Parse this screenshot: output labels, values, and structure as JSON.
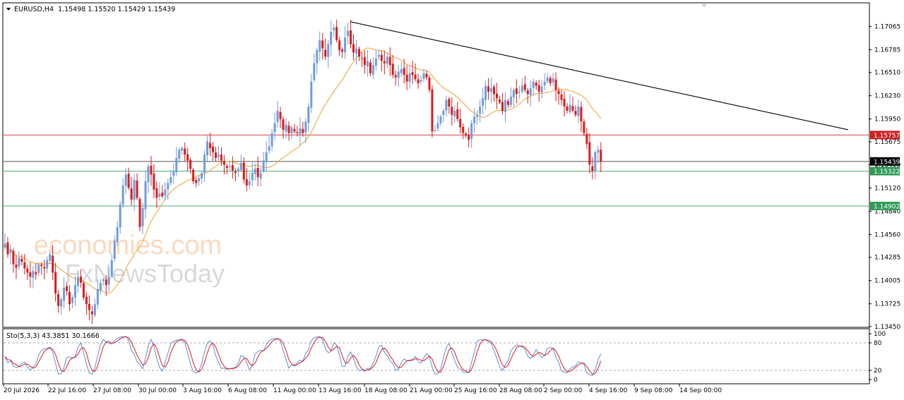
{
  "chart_data": {
    "type": "candlestick",
    "symbol": "EURUSD,H4",
    "ohlc_header": "1.15498 1.15520 1.15429 1.15439",
    "y_ticks": [
      "1.17065",
      "1.16785",
      "1.16510",
      "1.16230",
      "1.15950",
      "1.15675",
      "1.15400",
      "1.15120",
      "1.14840",
      "1.14560",
      "1.14285",
      "1.14005",
      "1.13725",
      "1.13450"
    ],
    "y_range": [
      1.1345,
      1.1734
    ],
    "x_ticks": [
      "20 Jul 2026",
      "22 Jul 16:00",
      "27 Jul 08:00",
      "30 Jul 00:00",
      "3 Aug 16:00",
      "6 Aug 08:00",
      "11 Aug 00:00",
      "13 Aug 16:00",
      "18 Aug 08:00",
      "21 Aug 00:00",
      "25 Aug 16:00",
      "28 Aug 08:00",
      "2 Sep 00:00",
      "4 Sep 16:00",
      "9 Sep 08:00",
      "14 Sep 00:00"
    ],
    "levels": [
      {
        "label": "1.15757",
        "value": 1.15757,
        "color": "#cc2222"
      },
      {
        "label": "1.15439",
        "value": 1.15439,
        "color": "#333333"
      },
      {
        "label": "1.15322",
        "value": 1.15322,
        "color": "#2e9b57"
      },
      {
        "label": "1.14902",
        "value": 1.14902,
        "color": "#2e9b57"
      }
    ],
    "trendline": {
      "from": {
        "bar": 123,
        "price": 1.1712
      },
      "to": {
        "bar": 251,
        "price": 1.1582
      }
    },
    "moving_average_color": "#f0a030",
    "up_color": "#6f9bdc",
    "down_color": "#dd1a1a",
    "closes": [
      1.1445,
      1.1432,
      1.1438,
      1.142,
      1.1416,
      1.1428,
      1.1423,
      1.1415,
      1.141,
      1.1405,
      1.1412,
      1.1408,
      1.142,
      1.1418,
      1.1415,
      1.1425,
      1.1432,
      1.141,
      1.1385,
      1.137,
      1.1378,
      1.1392,
      1.1388,
      1.1372,
      1.138,
      1.1395,
      1.1405,
      1.1398,
      1.138,
      1.1372,
      1.1365,
      1.136,
      1.1372,
      1.139,
      1.1398,
      1.1402,
      1.1395,
      1.1405,
      1.1425,
      1.1448,
      1.1465,
      1.1492,
      1.1515,
      1.1528,
      1.1512,
      1.1498,
      1.1522,
      1.15,
      1.1465,
      1.1488,
      1.152,
      1.1538,
      1.1528,
      1.151,
      1.15,
      1.1505,
      1.1502,
      1.151,
      1.1518,
      1.1525,
      1.1532,
      1.1548,
      1.1558,
      1.156,
      1.1552,
      1.1545,
      1.1535,
      1.152,
      1.1518,
      1.1524,
      1.153,
      1.1552,
      1.1568,
      1.156,
      1.1555,
      1.1548,
      1.1552,
      1.1545,
      1.154,
      1.1536,
      1.1538,
      1.1533,
      1.153,
      1.1535,
      1.1542,
      1.1522,
      1.1515,
      1.152,
      1.153,
      1.1535,
      1.1525,
      1.153,
      1.1545,
      1.1555,
      1.1562,
      1.1578,
      1.159,
      1.1605,
      1.1595,
      1.1582,
      1.1588,
      1.1578,
      1.1585,
      1.158,
      1.1578,
      1.1584,
      1.1578,
      1.1592,
      1.161,
      1.164,
      1.1662,
      1.1678,
      1.169,
      1.168,
      1.167,
      1.1685,
      1.17,
      1.1705,
      1.169,
      1.1678,
      1.1676,
      1.1693,
      1.1701,
      1.1685,
      1.1675,
      1.168,
      1.167,
      1.1668,
      1.166,
      1.1665,
      1.165,
      1.166,
      1.1668,
      1.1672,
      1.1665,
      1.1662,
      1.167,
      1.166,
      1.1648,
      1.1645,
      1.1652,
      1.1655,
      1.1648,
      1.164,
      1.165,
      1.1648,
      1.1643,
      1.1638,
      1.1642,
      1.165,
      1.1645,
      1.163,
      1.158,
      1.1582,
      1.159,
      1.1598,
      1.1605,
      1.1618,
      1.161,
      1.16,
      1.1605,
      1.1595,
      1.1585,
      1.1578,
      1.1575,
      1.157,
      1.159,
      1.1598,
      1.16,
      1.161,
      1.162,
      1.1635,
      1.1628,
      1.1632,
      1.1625,
      1.162,
      1.1615,
      1.1605,
      1.1618,
      1.1612,
      1.1622,
      1.163,
      1.1625,
      1.1628,
      1.1635,
      1.163,
      1.1625,
      1.1632,
      1.164,
      1.1635,
      1.1628,
      1.1634,
      1.164,
      1.1645,
      1.1638,
      1.1644,
      1.163,
      1.1625,
      1.1618,
      1.161,
      1.1605,
      1.1612,
      1.1605,
      1.16,
      1.161,
      1.1592,
      1.1578,
      1.1565,
      1.154,
      1.1532,
      1.1555,
      1.1558,
      1.1544
    ],
    "stoch_label": "Sto(5,3,3) 43.3851 30.1666",
    "stoch_ticks": [
      "100",
      "80",
      "20",
      "0"
    ],
    "stoch_main_color": "#5b8fd8",
    "stoch_signal_color": "#dd1a1a",
    "stoch_range": [
      0,
      100
    ],
    "stoch_levels": [
      80,
      20
    ]
  },
  "watermark": {
    "line1": "economies.com",
    "line2": "FxNewsToday"
  }
}
